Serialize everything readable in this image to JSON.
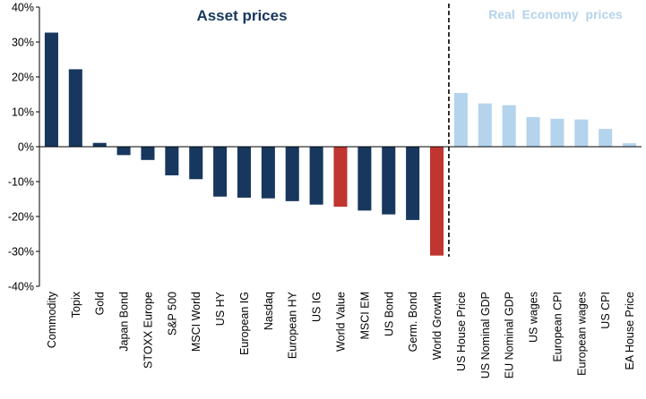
{
  "chart_data": {
    "type": "bar",
    "title_left": "Asset prices",
    "title_right": "Real Economy prices",
    "ylim": [
      -40,
      40
    ],
    "y_ticks": [
      {
        "value": 40,
        "label": "40%"
      },
      {
        "value": 30,
        "label": "30%"
      },
      {
        "value": 20,
        "label": "20%"
      },
      {
        "value": 10,
        "label": "10%"
      },
      {
        "value": 0,
        "label": "0%"
      },
      {
        "value": -10,
        "label": "-10%"
      },
      {
        "value": -20,
        "label": "-20%"
      },
      {
        "value": -30,
        "label": "-30%"
      },
      {
        "value": -40,
        "label": "-40%"
      }
    ],
    "categories": [
      "Commodity",
      "Topix",
      "Gold",
      "Japan Bond",
      "STOXX Europe",
      "S&P 500",
      "MSCI World",
      "US HY",
      "European IG",
      "Nasdaq",
      "European HY",
      "US IG",
      "World Value",
      "MSCI EM",
      "US Bond",
      "Germ. Bond",
      "World Growth",
      "US House Price",
      "US Nominal GDP",
      "EU Nominal GDP",
      "US wages",
      "European CPI",
      "European wages",
      "US CPI",
      "EA House Price"
    ],
    "values": [
      32.7,
      22.2,
      1.1,
      -2.4,
      -3.8,
      -8.2,
      -9.3,
      -14.3,
      -14.6,
      -14.8,
      -15.6,
      -16.6,
      -17.2,
      -18.3,
      -19.4,
      -21.0,
      -31.2,
      15.4,
      12.4,
      11.9,
      8.5,
      8.0,
      7.8,
      5.1,
      1.0
    ],
    "groups": [
      "asset",
      "asset",
      "asset",
      "asset",
      "asset",
      "asset",
      "asset",
      "asset",
      "asset",
      "asset",
      "asset",
      "asset",
      "asset",
      "asset",
      "asset",
      "asset",
      "asset",
      "real",
      "real",
      "real",
      "real",
      "real",
      "real",
      "real",
      "real"
    ],
    "highlighted": [
      "World Value",
      "World Growth"
    ],
    "colors": {
      "asset": "#17375e",
      "highlight": "#c0352f",
      "real": "#b4d3ec",
      "divider": "#000000"
    },
    "divider_after_index": 16
  }
}
